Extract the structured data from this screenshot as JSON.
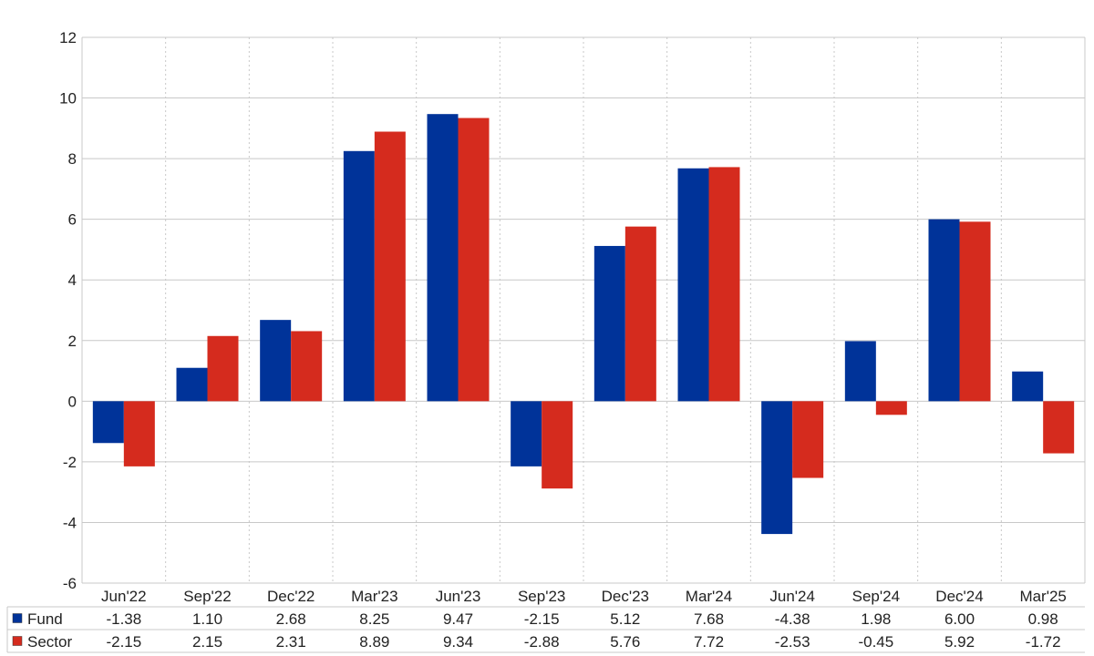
{
  "chart_data": {
    "type": "bar",
    "categories": [
      "Jun'22",
      "Sep'22",
      "Dec'22",
      "Mar'23",
      "Jun'23",
      "Sep'23",
      "Dec'23",
      "Mar'24",
      "Jun'24",
      "Sep'24",
      "Dec'24",
      "Mar'25"
    ],
    "series": [
      {
        "name": "Fund",
        "color": "#003399",
        "values": [
          -1.38,
          1.1,
          2.68,
          8.25,
          9.47,
          -2.15,
          5.12,
          7.68,
          -4.38,
          1.98,
          6.0,
          0.98
        ],
        "labels": [
          "-1.38",
          "1.10",
          "2.68",
          "8.25",
          "9.47",
          "-2.15",
          "5.12",
          "7.68",
          "-4.38",
          "1.98",
          "6.00",
          "0.98"
        ]
      },
      {
        "name": "Sector",
        "color": "#d52b1e",
        "values": [
          -2.15,
          2.15,
          2.31,
          8.89,
          9.34,
          -2.88,
          5.76,
          7.72,
          -2.53,
          -0.45,
          5.92,
          -1.72
        ],
        "labels": [
          "-2.15",
          "2.15",
          "2.31",
          "8.89",
          "9.34",
          "-2.88",
          "5.76",
          "7.72",
          "-2.53",
          "-0.45",
          "5.92",
          "-1.72"
        ]
      }
    ],
    "ylim": [
      -6,
      12
    ],
    "yticks": [
      "-6",
      "-4",
      "-2",
      "0",
      "2",
      "4",
      "6",
      "8",
      "10",
      "12"
    ],
    "ytick_values": [
      -6,
      -4,
      -2,
      0,
      2,
      4,
      6,
      8,
      10,
      12
    ],
    "grid": true,
    "legend": "bottom data table",
    "negative_color": "#ff0000",
    "title": "",
    "xlabel": "",
    "ylabel": ""
  }
}
